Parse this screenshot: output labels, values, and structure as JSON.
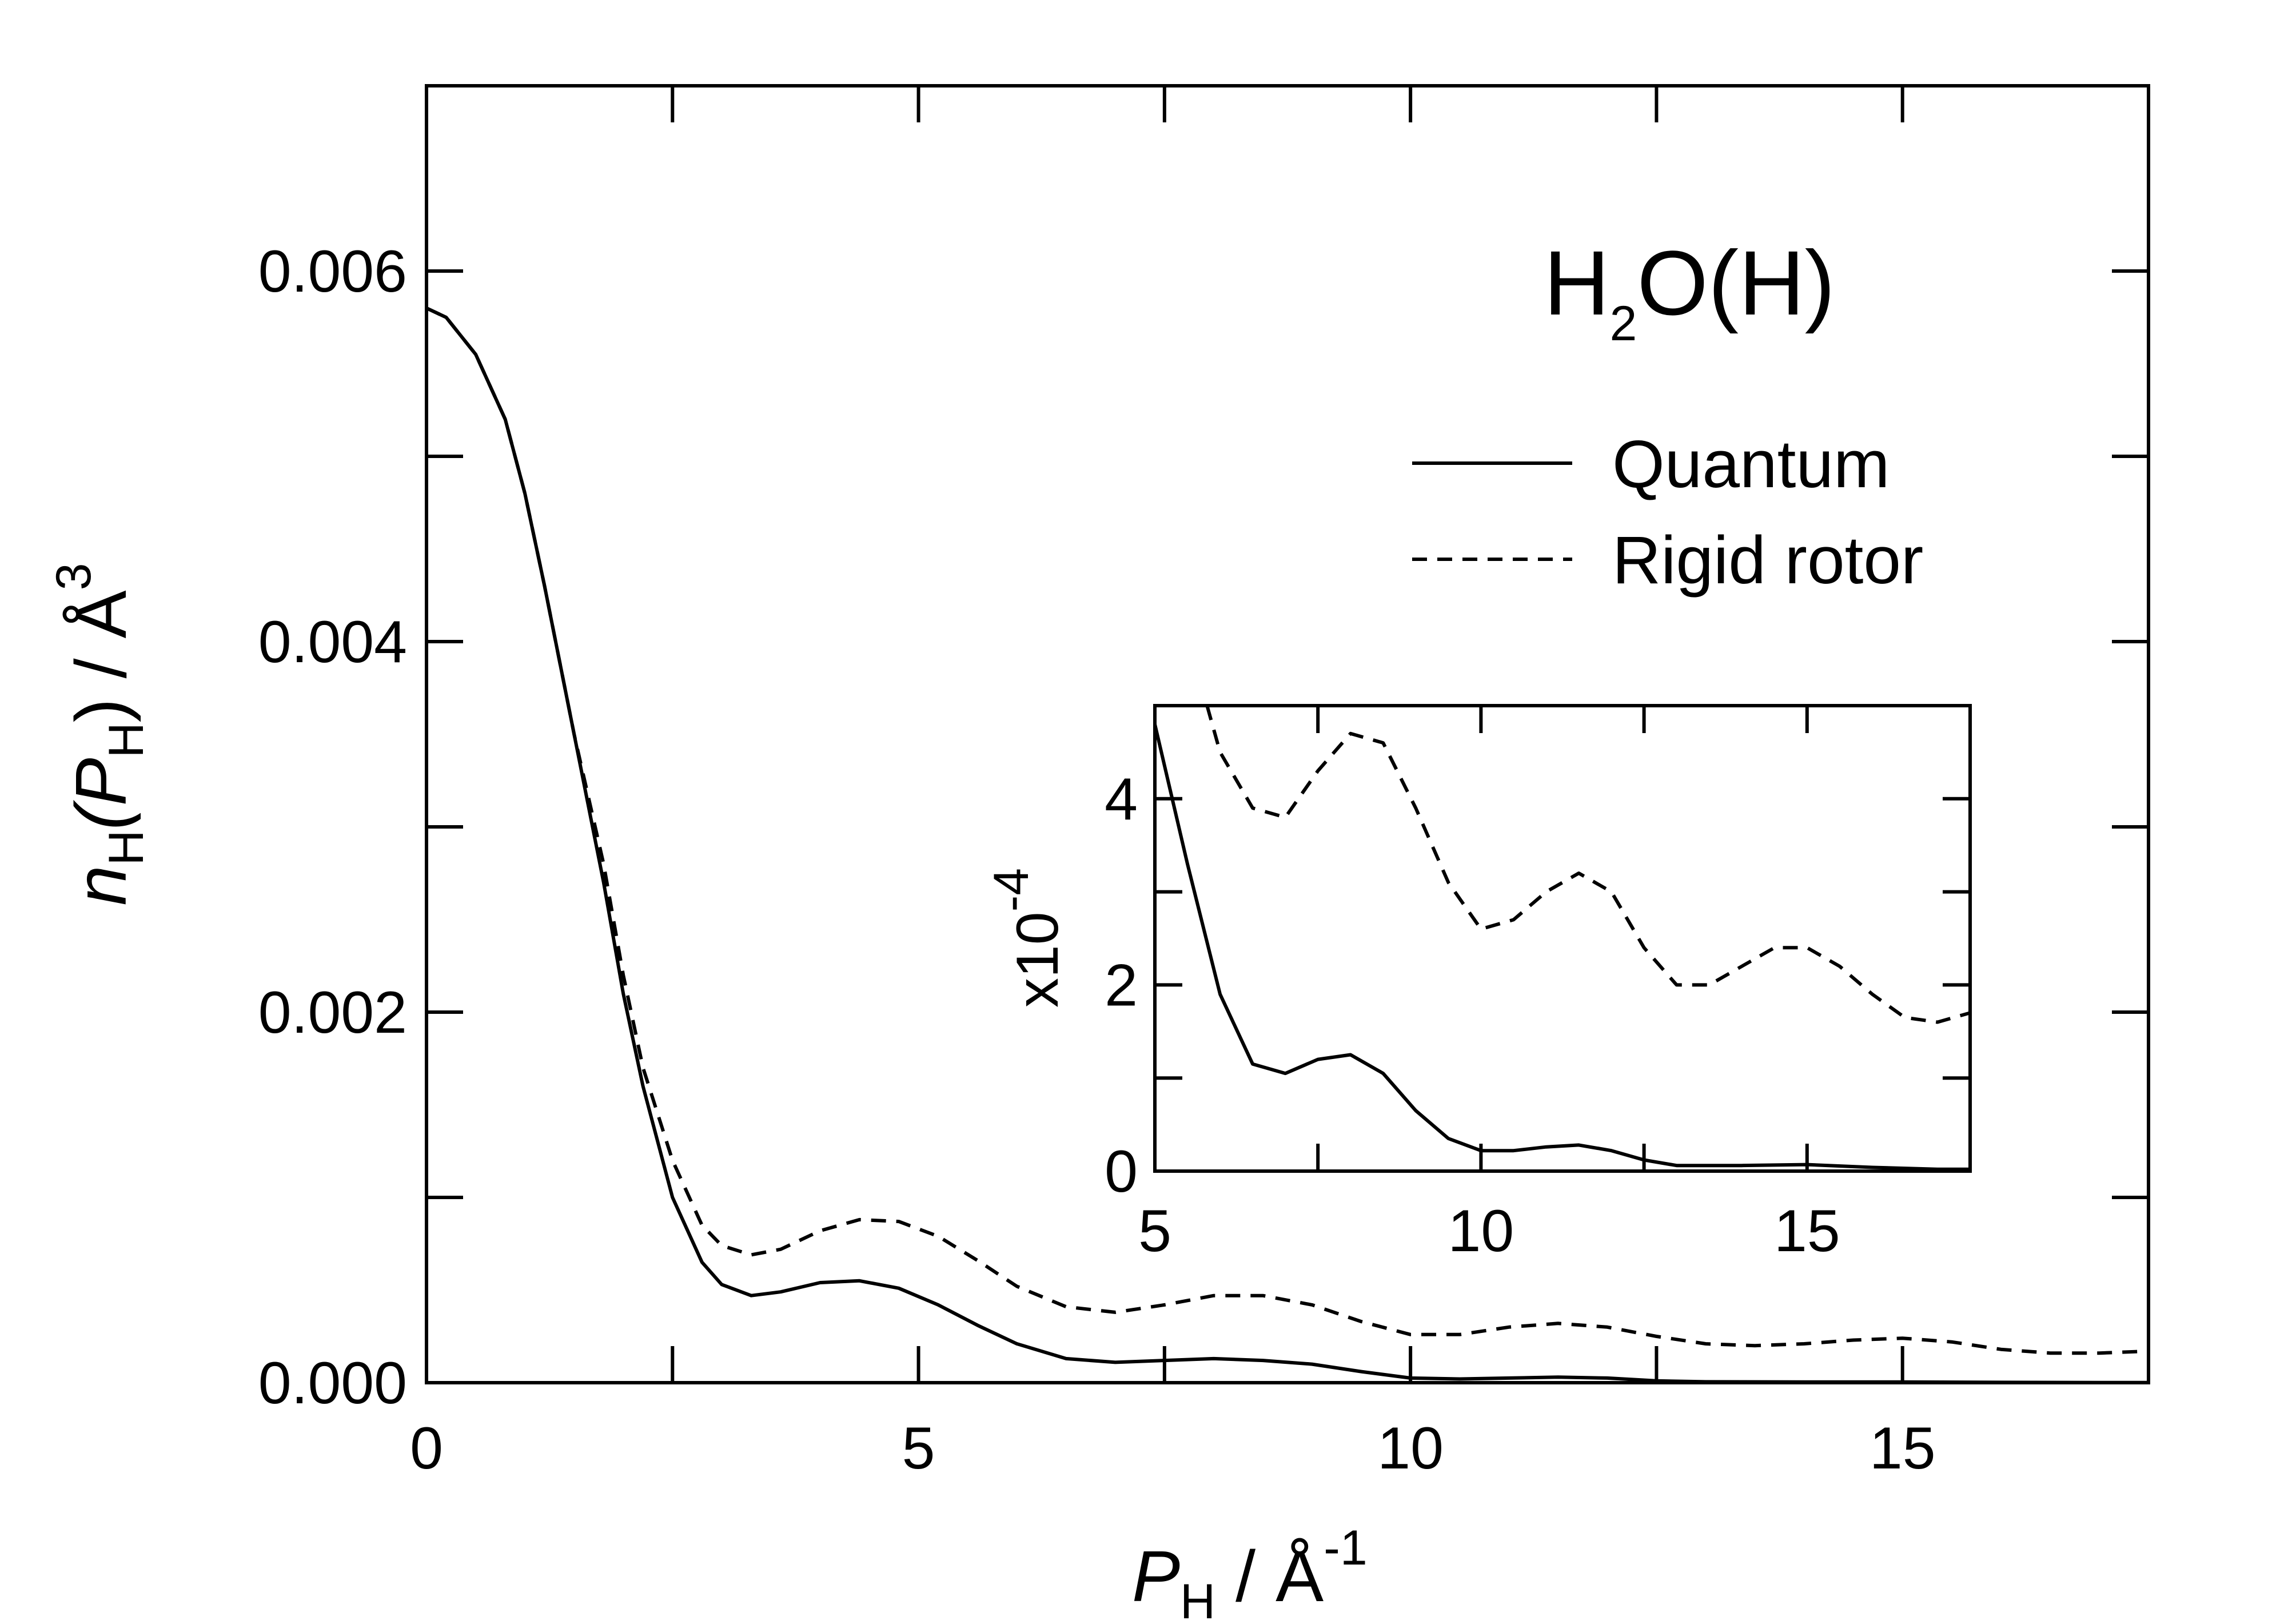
{
  "chart_data": [
    {
      "id": "main",
      "type": "line",
      "title": "",
      "annotation": {
        "main": "H",
        "sub": "2",
        "rest": "O(H)"
      },
      "xlabel": {
        "main": "P",
        "sub": "H",
        "rest": " / Å",
        "sup": "-1"
      },
      "ylabel": {
        "pre": "n",
        "sub1": "H",
        "mid": "(P",
        "sub2": "H",
        "post": ") / Å",
        "sup": "3"
      },
      "xlim": [
        0,
        17.5
      ],
      "ylim": [
        0,
        0.007
      ],
      "x_ticks": [
        0,
        5,
        10,
        15
      ],
      "x_tick_labels": [
        "0",
        "5",
        "10",
        "15"
      ],
      "x_minor_ticks": [
        2.5,
        7.5,
        12.5
      ],
      "y_ticks": [
        0,
        0.002,
        0.004,
        0.006
      ],
      "y_tick_labels": [
        "0.000",
        "0.002",
        "0.004",
        "0.006"
      ],
      "y_minor_ticks": [
        0.001,
        0.003,
        0.005
      ],
      "legend_position": "top-right",
      "series": [
        {
          "name": "Quantum",
          "style": "solid",
          "x": [
            0,
            0.2,
            0.5,
            0.8,
            1.0,
            1.2,
            1.5,
            1.8,
            2.0,
            2.2,
            2.5,
            2.8,
            3.0,
            3.3,
            3.6,
            4.0,
            4.4,
            4.8,
            5.2,
            5.6,
            6.0,
            6.5,
            7.0,
            7.5,
            8.0,
            8.5,
            9.0,
            9.5,
            10.0,
            10.5,
            11.0,
            11.5,
            12.0,
            12.5,
            13.0,
            14.0,
            15.0,
            16.0,
            17.0,
            17.5
          ],
          "y": [
            0.0058,
            0.00575,
            0.00555,
            0.0052,
            0.0048,
            0.0043,
            0.0035,
            0.0027,
            0.0021,
            0.0016,
            0.001,
            0.00065,
            0.00053,
            0.00047,
            0.00049,
            0.00054,
            0.00055,
            0.00051,
            0.00042,
            0.00031,
            0.00021,
            0.00013,
            0.00011,
            0.00012,
            0.00013,
            0.00012,
            0.0001,
            6e-05,
            2.5e-05,
            2e-05,
            2.5e-05,
            3e-05,
            2.5e-05,
            1e-05,
            5e-06,
            4e-06,
            4e-06,
            2e-06,
            1e-06,
            1e-06
          ]
        },
        {
          "name": "Rigid rotor",
          "style": "dashed",
          "x": [
            0,
            0.2,
            0.5,
            0.8,
            1.0,
            1.2,
            1.5,
            1.8,
            2.0,
            2.2,
            2.5,
            2.8,
            3.0,
            3.3,
            3.6,
            4.0,
            4.4,
            4.8,
            5.2,
            5.6,
            6.0,
            6.5,
            7.0,
            7.5,
            8.0,
            8.5,
            9.0,
            9.5,
            10.0,
            10.5,
            11.0,
            11.5,
            12.0,
            12.5,
            13.0,
            13.5,
            14.0,
            14.5,
            15.0,
            15.5,
            16.0,
            16.5,
            17.0,
            17.5
          ],
          "y": [
            0.0058,
            0.00575,
            0.00555,
            0.0052,
            0.0048,
            0.0043,
            0.0035,
            0.0028,
            0.0022,
            0.0017,
            0.0012,
            0.00085,
            0.00074,
            0.00069,
            0.00072,
            0.00082,
            0.00088,
            0.00087,
            0.00079,
            0.00066,
            0.00052,
            0.00041,
            0.00038,
            0.00042,
            0.00047,
            0.00047,
            0.00042,
            0.00033,
            0.00026,
            0.00026,
            0.0003,
            0.00032,
            0.0003,
            0.00025,
            0.00021,
            0.0002,
            0.00021,
            0.00023,
            0.00024,
            0.00022,
            0.00018,
            0.00016,
            0.00016,
            0.00017
          ]
        }
      ]
    },
    {
      "id": "inset",
      "type": "line",
      "ylabel": {
        "pre": "x10",
        "sup": "-4"
      },
      "xlim": [
        5,
        17.5
      ],
      "ylim": [
        0,
        5
      ],
      "x_ticks": [
        5,
        10,
        15
      ],
      "x_tick_labels": [
        "5",
        "10",
        "15"
      ],
      "x_minor_ticks": [
        7.5,
        12.5
      ],
      "y_ticks": [
        0,
        2,
        4
      ],
      "y_tick_labels": [
        "0",
        "2",
        "4"
      ],
      "y_minor_ticks": [
        1,
        3
      ],
      "series": [
        {
          "name": "Quantum",
          "style": "solid",
          "x": [
            5,
            5.5,
            6,
            6.5,
            7,
            7.5,
            8,
            8.5,
            9,
            9.5,
            10,
            10.5,
            11,
            11.5,
            12,
            12.5,
            13,
            14,
            15,
            16,
            17,
            17.5
          ],
          "y": [
            4.8,
            3.3,
            1.9,
            1.15,
            1.05,
            1.2,
            1.25,
            1.05,
            0.65,
            0.35,
            0.22,
            0.22,
            0.26,
            0.28,
            0.22,
            0.12,
            0.06,
            0.06,
            0.07,
            0.04,
            0.02,
            0.02
          ]
        },
        {
          "name": "Rigid rotor",
          "style": "dashed",
          "x": [
            5.8,
            6,
            6.5,
            7,
            7.5,
            8,
            8.5,
            9,
            9.5,
            10,
            10.5,
            11,
            11.5,
            12,
            12.5,
            13,
            13.5,
            14,
            14.5,
            15,
            15.5,
            16,
            16.5,
            17,
            17.5
          ],
          "y": [
            5.0,
            4.5,
            3.9,
            3.8,
            4.3,
            4.7,
            4.6,
            3.9,
            3.1,
            2.6,
            2.7,
            3.0,
            3.2,
            3.0,
            2.4,
            2.0,
            2.0,
            2.2,
            2.4,
            2.4,
            2.2,
            1.9,
            1.65,
            1.6,
            1.7
          ]
        }
      ]
    }
  ]
}
